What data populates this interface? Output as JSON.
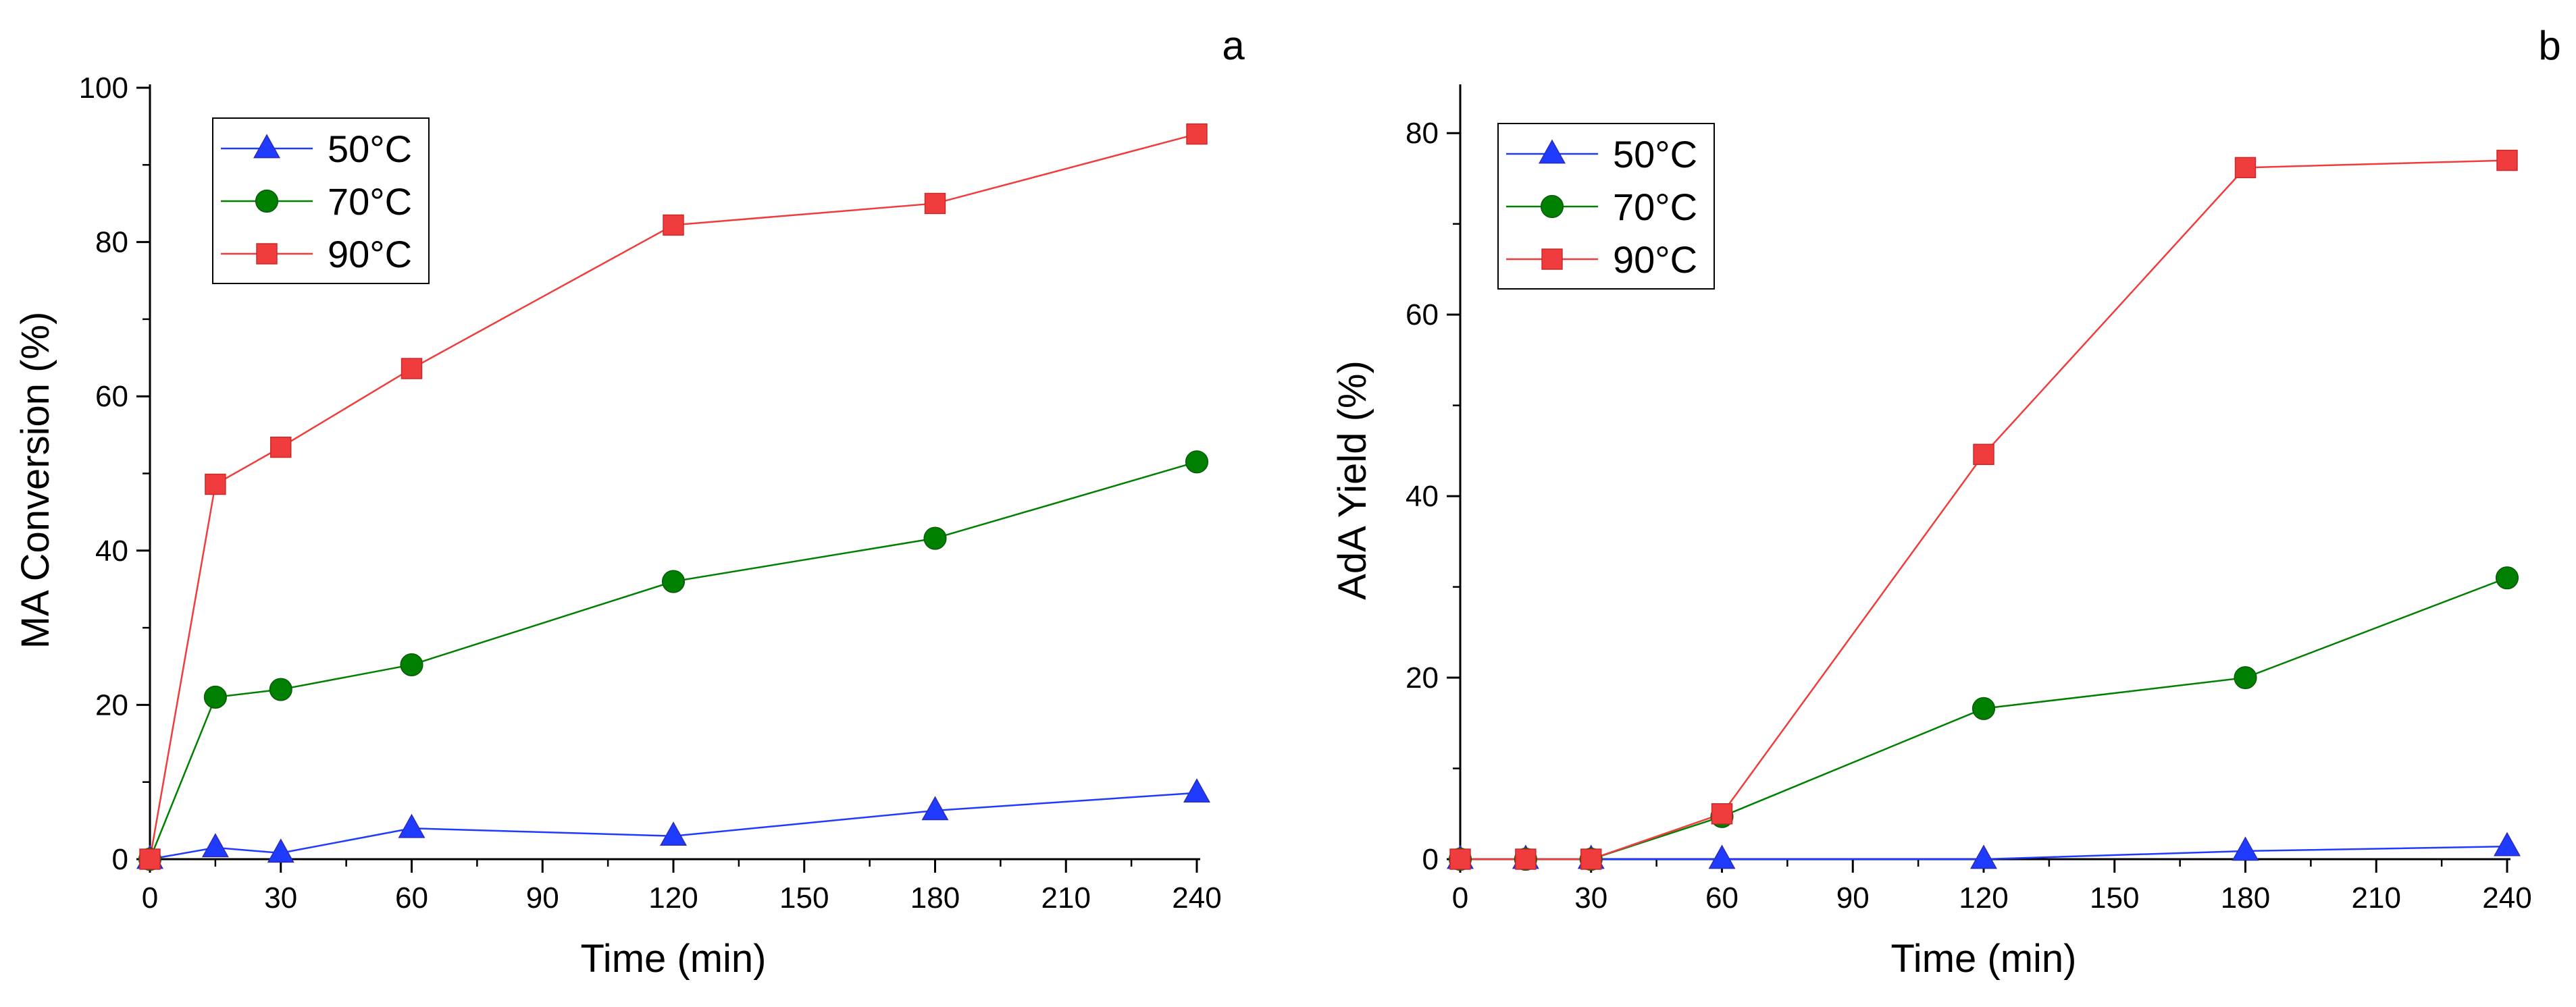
{
  "chart_data": [
    {
      "panel_label": "a",
      "type": "line",
      "xlabel": "Time (min)",
      "ylabel": "MA Conversion (%)",
      "xlim": [
        0,
        240
      ],
      "ylim": [
        0,
        100
      ],
      "xticks": [
        0,
        30,
        60,
        90,
        120,
        150,
        180,
        210,
        240
      ],
      "yticks": [
        0,
        20,
        40,
        60,
        80,
        100
      ],
      "legend_position": "top-left",
      "grid": false,
      "x": [
        0,
        15,
        30,
        60,
        120,
        180,
        240
      ],
      "series": [
        {
          "name": "50°C",
          "color": "#1f3bff",
          "marker": "triangle",
          "values": [
            0,
            1.5,
            0.8,
            4.0,
            3.0,
            6.3,
            8.6
          ]
        },
        {
          "name": "70°C",
          "color": "#008000",
          "marker": "circle",
          "values": [
            0,
            21.0,
            22.0,
            25.2,
            36.0,
            41.6,
            51.5
          ]
        },
        {
          "name": "90°C",
          "color": "#f03c3c",
          "marker": "square",
          "values": [
            0,
            48.6,
            53.4,
            63.6,
            82.2,
            85.0,
            94.0
          ]
        }
      ]
    },
    {
      "panel_label": "b",
      "type": "line",
      "xlabel": "Time (min)",
      "ylabel": "AdA Yield (%)",
      "xlim": [
        0,
        240
      ],
      "ylim": [
        0,
        85
      ],
      "xticks": [
        0,
        30,
        60,
        90,
        120,
        150,
        180,
        210,
        240
      ],
      "yticks": [
        0,
        20,
        40,
        60,
        80
      ],
      "legend_position": "top-left",
      "grid": false,
      "x": [
        0,
        15,
        30,
        60,
        120,
        180,
        240
      ],
      "series": [
        {
          "name": "50°C",
          "color": "#1f3bff",
          "marker": "triangle",
          "values": [
            0,
            0,
            0,
            0,
            0,
            0.9,
            1.4
          ]
        },
        {
          "name": "70°C",
          "color": "#008000",
          "marker": "circle",
          "values": [
            0,
            0,
            0,
            4.7,
            16.6,
            20.0,
            31.0
          ]
        },
        {
          "name": "90°C",
          "color": "#f03c3c",
          "marker": "square",
          "values": [
            0,
            0,
            0,
            5.0,
            44.6,
            76.2,
            77.0
          ]
        }
      ]
    }
  ]
}
